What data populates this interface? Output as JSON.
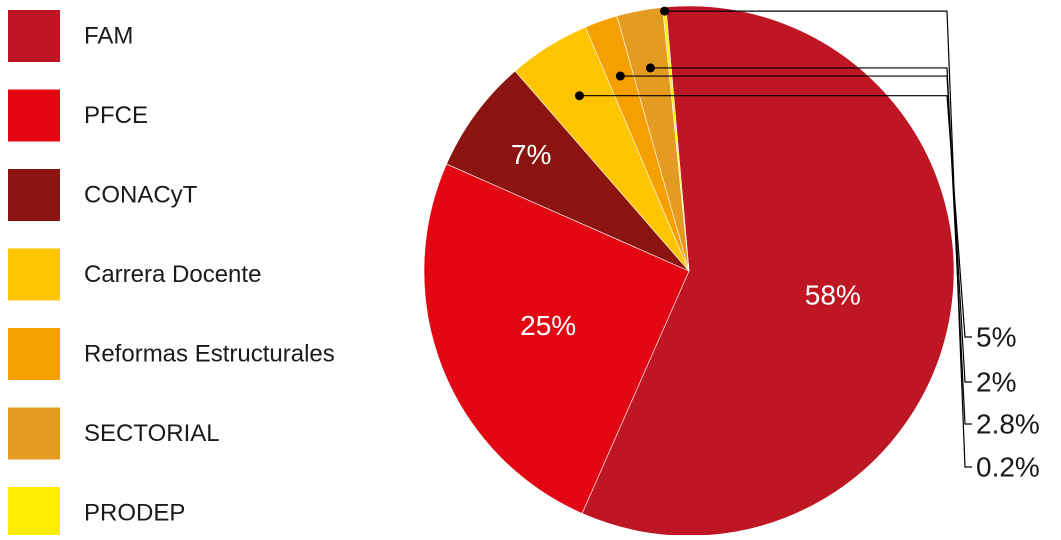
{
  "chart_data": {
    "type": "pie",
    "title": "",
    "legend_position": "left",
    "slices": [
      {
        "label": "FAM",
        "value": 58,
        "display": "58%",
        "color": "#BE1622"
      },
      {
        "label": "PFCE",
        "value": 25,
        "display": "25%",
        "color": "#E30613"
      },
      {
        "label": "CONACyT",
        "value": 7,
        "display": "7%",
        "color": "#8B1410"
      },
      {
        "label": "Carrera Docente",
        "value": 5,
        "display": "5%",
        "color": "#FFC500"
      },
      {
        "label": "Reformas Estructurales",
        "value": 2,
        "display": "2%",
        "color": "#F6A000"
      },
      {
        "label": "SECTORIAL",
        "value": 2.8,
        "display": "2.8%",
        "color": "#E39B22"
      },
      {
        "label": "PRODEP",
        "value": 0.2,
        "display": "0.2%",
        "color": "#FFED00"
      }
    ]
  }
}
